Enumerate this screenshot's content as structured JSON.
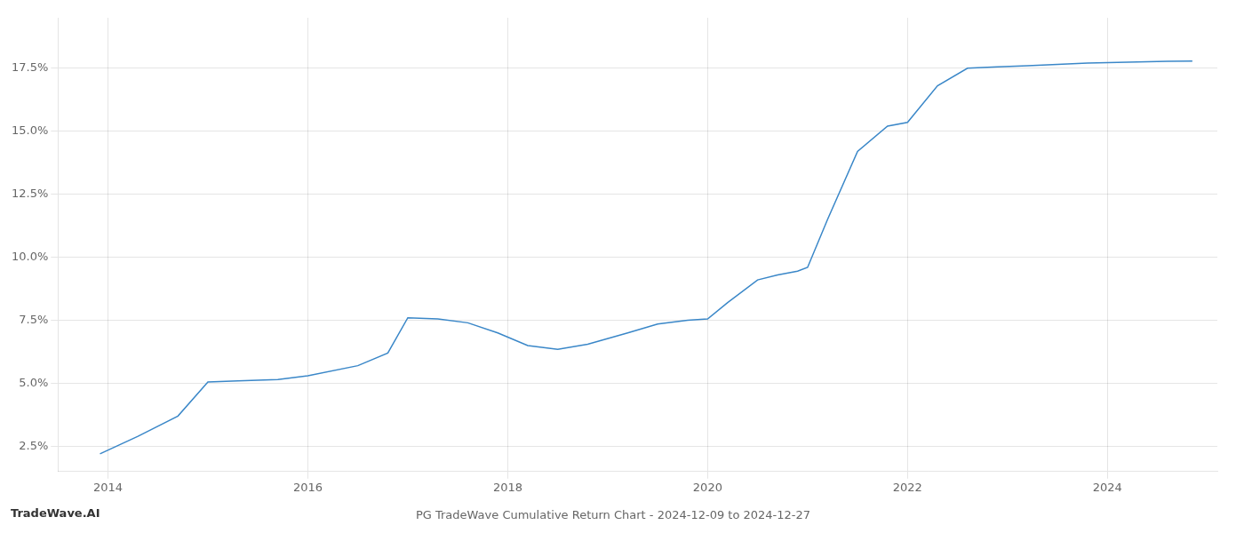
{
  "chart_data": {
    "type": "line",
    "title": "PG TradeWave Cumulative Return Chart - 2024-12-09 to 2024-12-27",
    "annotations": [
      "TradeWave.AI"
    ],
    "x": [
      2013.92,
      2014.3,
      2014.7,
      2015.0,
      2015.3,
      2015.7,
      2016.0,
      2016.5,
      2016.8,
      2017.0,
      2017.3,
      2017.6,
      2017.9,
      2018.2,
      2018.5,
      2018.8,
      2019.2,
      2019.5,
      2019.8,
      2020.0,
      2020.2,
      2020.5,
      2020.7,
      2020.9,
      2021.0,
      2021.2,
      2021.5,
      2021.8,
      2022.0,
      2022.3,
      2022.6,
      2022.9,
      2023.2,
      2023.5,
      2023.8,
      2024.0,
      2024.3,
      2024.6,
      2024.85
    ],
    "values": [
      2.2,
      2.9,
      3.7,
      5.05,
      5.1,
      5.15,
      5.3,
      5.7,
      6.2,
      7.6,
      7.55,
      7.4,
      7.0,
      6.5,
      6.35,
      6.55,
      7.0,
      7.35,
      7.5,
      7.55,
      8.2,
      9.1,
      9.3,
      9.45,
      9.6,
      11.5,
      14.2,
      15.2,
      15.35,
      16.8,
      17.5,
      17.55,
      17.6,
      17.65,
      17.7,
      17.72,
      17.75,
      17.77,
      17.78
    ],
    "color": "#3a87c8",
    "xlim": [
      2013.5,
      2025.1
    ],
    "ylim": [
      1.5,
      19.5
    ],
    "xticks": [
      2014,
      2016,
      2018,
      2020,
      2022,
      2024
    ],
    "yticks": [
      {
        "value": 2.5,
        "label": "2.5%"
      },
      {
        "value": 5.0,
        "label": "5.0%"
      },
      {
        "value": 7.5,
        "label": "7.5%"
      },
      {
        "value": 10.0,
        "label": "10.0%"
      },
      {
        "value": 12.5,
        "label": "12.5%"
      },
      {
        "value": 15.0,
        "label": "15.0%"
      },
      {
        "value": 17.5,
        "label": "17.5%"
      }
    ],
    "grid": true
  }
}
